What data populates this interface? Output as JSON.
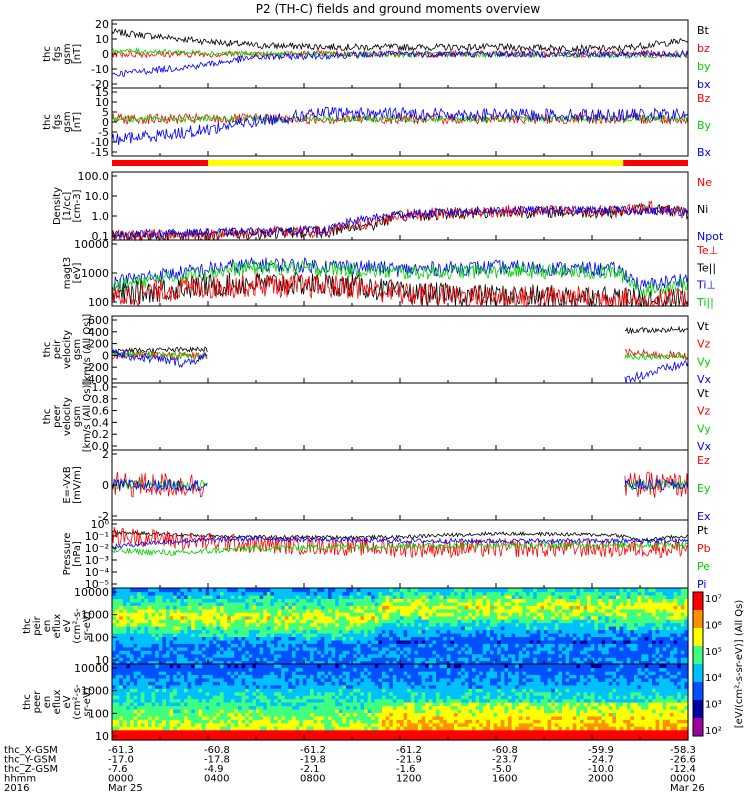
{
  "title": "P2 (TH-C) fields and ground moments overview",
  "colors": {
    "black": "#000000",
    "red": "#ff0000",
    "green": "#00d000",
    "blue": "#0000ff",
    "yellow": "#ffff00"
  },
  "panels": [
    {
      "id": "fgs",
      "ylabel": [
        "thc",
        "fgs",
        "gsm",
        "[nT]"
      ],
      "ticks": [
        "20",
        "10",
        "0",
        "-10",
        "-20"
      ],
      "legend": [
        {
          "text": "Bt",
          "color": "black"
        },
        {
          "text": "bz",
          "color": "red"
        },
        {
          "text": "by",
          "color": "green"
        },
        {
          "text": "bx",
          "color": "blue"
        }
      ]
    },
    {
      "id": "fgs_dsl",
      "ylabel": [
        "thc",
        "fgs",
        "gsm",
        "[nT]"
      ],
      "ticks": [
        "15",
        "10",
        "5",
        "0",
        "-5",
        "-10",
        "-15"
      ],
      "legend": [
        {
          "text": "Bz",
          "color": "red"
        },
        {
          "text": "By",
          "color": "green"
        },
        {
          "text": "Bx",
          "color": "blue"
        }
      ]
    },
    {
      "id": "density",
      "ylabel": [
        "Density",
        "[1/cc]",
        "[cm-3]"
      ],
      "ticks": [
        "100.0",
        "10.0",
        "1.0",
        "0.1"
      ],
      "legend": [
        {
          "text": "Ne",
          "color": "red"
        },
        {
          "text": "Ni",
          "color": "black"
        },
        {
          "text": "Npot",
          "color": "blue"
        }
      ]
    },
    {
      "id": "temp",
      "ylabel": [
        "magt3",
        "[eV]"
      ],
      "ticks": [
        "10000",
        "1000",
        "100"
      ],
      "legend": [
        {
          "text": "Te⊥",
          "color": "red"
        },
        {
          "text": "Te||",
          "color": "black"
        },
        {
          "text": "Ti⊥",
          "color": "blue"
        },
        {
          "text": "Ti||",
          "color": "green"
        }
      ]
    },
    {
      "id": "peir_vel",
      "ylabel": [
        "thc",
        "peir",
        "velocity",
        "gsm",
        "[km/s (All Qs)]"
      ],
      "ticks": [
        "600",
        "400",
        "200",
        "0",
        "-200",
        "-400"
      ],
      "legend": [
        {
          "text": "Vt",
          "color": "black"
        },
        {
          "text": "Vz",
          "color": "red"
        },
        {
          "text": "Vy",
          "color": "green"
        },
        {
          "text": "Vx",
          "color": "blue"
        }
      ]
    },
    {
      "id": "peer_vel",
      "ylabel": [
        "thc",
        "peer",
        "velocity",
        "gsm",
        "[km/s (All Qs)]"
      ],
      "ticks": [
        "1.0",
        "0.8",
        "0.6",
        "0.4",
        "0.2",
        "0.0"
      ],
      "legend": [
        {
          "text": "Vt",
          "color": "black"
        },
        {
          "text": "Vz",
          "color": "red"
        },
        {
          "text": "Vy",
          "color": "green"
        },
        {
          "text": "Vx",
          "color": "blue"
        }
      ]
    },
    {
      "id": "efield",
      "ylabel": [
        "E=-VxB",
        "[mV/m]"
      ],
      "ticks": [
        "2",
        "0",
        "-2"
      ],
      "legend": [
        {
          "text": "Ez",
          "color": "red"
        },
        {
          "text": "Ey",
          "color": "green"
        },
        {
          "text": "Ex",
          "color": "blue"
        }
      ]
    },
    {
      "id": "pressure",
      "ylabel": [
        "Pressure",
        "[nPa]"
      ],
      "ticks": [
        "10⁰",
        "10⁻¹",
        "10⁻²",
        "10⁻³",
        "10⁻⁴",
        "10⁻⁵"
      ],
      "legend": [
        {
          "text": "Pt",
          "color": "black"
        },
        {
          "text": "Pb",
          "color": "red"
        },
        {
          "text": "Pe",
          "color": "green"
        },
        {
          "text": "Pi",
          "color": "blue"
        }
      ]
    },
    {
      "id": "peir_en",
      "ylabel": [
        "thc",
        "peir",
        "en",
        "eflux",
        "eV",
        "(cm²-s-",
        "sr-eV)"
      ],
      "ticks": [
        "10000",
        "1000",
        "100",
        "10"
      ],
      "legend": []
    },
    {
      "id": "peer_en",
      "ylabel": [
        "thc",
        "peer",
        "en",
        "eflux",
        "eV",
        "(cm²-s-",
        "sr-eV)"
      ],
      "ticks": [
        "10000",
        "1000",
        "100",
        "10"
      ],
      "legend": []
    }
  ],
  "colorbar": {
    "ticks": [
      "10⁷",
      "10⁶",
      "10⁵",
      "10⁴",
      "10³",
      "10²"
    ],
    "label": "[eV/(cm²-s-sr-eV)] (All Qs)"
  },
  "xaxis": {
    "row_labels": [
      "thc_X-GSM",
      "thc_Y-GSM",
      "thc_Z-GSM",
      "hhmm",
      "2016"
    ],
    "columns": [
      [
        "-61.3",
        "-17.0",
        "-7.6",
        "0000",
        "Mar 25"
      ],
      [
        "-60.8",
        "-17.8",
        "-4.9",
        "0400",
        ""
      ],
      [
        "-61.2",
        "-19.8",
        "-2.1",
        "0800",
        ""
      ],
      [
        "-61.2",
        "-21.9",
        "-1.6",
        "1200",
        ""
      ],
      [
        "-60.8",
        "-23.7",
        "-5.0",
        "1600",
        ""
      ],
      [
        "-59.9",
        "-24.7",
        "-10.0",
        "2000",
        ""
      ],
      [
        "-58.3",
        "-26.6",
        "-12.4",
        "0000",
        "Mar 26"
      ]
    ]
  },
  "chart_data": {
    "type": "line",
    "title": "P2 (TH-C) fields and ground moments overview",
    "x_range_hours": [
      0,
      24
    ],
    "x_tick_hours": [
      0,
      4,
      8,
      12,
      16,
      20,
      24
    ],
    "series": [
      {
        "panel": "fgs",
        "name": "Bt",
        "color": "black",
        "profile": [
          [
            0,
            13
          ],
          [
            3.5,
            8
          ],
          [
            6,
            5
          ],
          [
            10,
            4
          ],
          [
            16,
            4
          ],
          [
            21,
            3
          ],
          [
            24,
            8
          ]
        ],
        "noise": 2
      },
      {
        "panel": "fgs",
        "name": "bz",
        "color": "red",
        "profile": [
          [
            0,
            0
          ],
          [
            12,
            0
          ],
          [
            24,
            0
          ]
        ],
        "noise": 2
      },
      {
        "panel": "fgs",
        "name": "by",
        "color": "green",
        "profile": [
          [
            0,
            2
          ],
          [
            6,
            0
          ],
          [
            24,
            -1
          ]
        ],
        "noise": 1.5
      },
      {
        "panel": "fgs",
        "name": "bx",
        "color": "blue",
        "profile": [
          [
            0,
            -12
          ],
          [
            3.5,
            -7
          ],
          [
            6,
            -2
          ],
          [
            12,
            0
          ],
          [
            24,
            0
          ]
        ],
        "noise": 2
      },
      {
        "panel": "fgs_dsl",
        "name": "Bz",
        "color": "red",
        "profile": [
          [
            0,
            0
          ],
          [
            12,
            0
          ],
          [
            24,
            0
          ]
        ],
        "noise": 2.5
      },
      {
        "panel": "fgs_dsl",
        "name": "By",
        "color": "green",
        "profile": [
          [
            0,
            0
          ],
          [
            12,
            0
          ],
          [
            24,
            0
          ]
        ],
        "noise": 1.5
      },
      {
        "panel": "fgs_dsl",
        "name": "Bx",
        "color": "blue",
        "profile": [
          [
            0,
            -10
          ],
          [
            3.5,
            -6
          ],
          [
            6,
            -1
          ],
          [
            9,
            3
          ],
          [
            16,
            2
          ],
          [
            24,
            2
          ]
        ],
        "noise": 3
      },
      {
        "panel": "density",
        "name": "Ni",
        "color": "black",
        "profile": [
          [
            0,
            0.12
          ],
          [
            4,
            0.15
          ],
          [
            9,
            0.2
          ],
          [
            11,
            0.5
          ],
          [
            12,
            1.2
          ],
          [
            16,
            2.0
          ],
          [
            21,
            2.0
          ],
          [
            22.5,
            3.0
          ],
          [
            24,
            1.5
          ]
        ],
        "noise": 0.6,
        "log": true
      },
      {
        "panel": "density",
        "name": "Ne",
        "color": "red",
        "profile": [
          [
            0,
            0.14
          ],
          [
            4,
            0.16
          ],
          [
            9,
            0.22
          ],
          [
            11,
            0.6
          ],
          [
            12,
            1.4
          ],
          [
            16,
            2.2
          ],
          [
            21,
            2.2
          ],
          [
            22.5,
            3.5
          ],
          [
            24,
            1.7
          ]
        ],
        "noise": 0.6,
        "log": true
      },
      {
        "panel": "density",
        "name": "Npot",
        "color": "blue",
        "profile": [
          [
            0,
            0.15
          ],
          [
            9,
            0.25
          ],
          [
            12,
            1.5
          ],
          [
            16,
            2.5
          ],
          [
            21,
            2.5
          ],
          [
            24,
            2
          ]
        ],
        "noise": 0.4,
        "log": true
      },
      {
        "panel": "temp",
        "name": "Ti⊥",
        "color": "blue",
        "profile": [
          [
            0,
            350
          ],
          [
            3,
            800
          ],
          [
            6,
            1500
          ],
          [
            10,
            1300
          ],
          [
            12,
            1000
          ],
          [
            16,
            1200
          ],
          [
            21,
            1000
          ],
          [
            22,
            250
          ],
          [
            24,
            500
          ]
        ],
        "noise": 0.5,
        "log": true
      },
      {
        "panel": "temp",
        "name": "Ti||",
        "color": "green",
        "profile": [
          [
            0,
            250
          ],
          [
            3,
            600
          ],
          [
            6,
            1200
          ],
          [
            10,
            1000
          ],
          [
            12,
            800
          ],
          [
            16,
            900
          ],
          [
            21,
            800
          ],
          [
            22,
            180
          ],
          [
            24,
            350
          ]
        ],
        "noise": 0.5,
        "log": true
      },
      {
        "panel": "temp",
        "name": "Te||",
        "color": "black",
        "profile": [
          [
            0,
            120
          ],
          [
            3,
            250
          ],
          [
            6,
            350
          ],
          [
            10,
            300
          ],
          [
            12,
            160
          ],
          [
            16,
            130
          ],
          [
            21,
            120
          ],
          [
            22,
            90
          ],
          [
            24,
            100
          ]
        ],
        "noise": 0.8,
        "log": true
      },
      {
        "panel": "temp",
        "name": "Te⊥",
        "color": "red",
        "profile": [
          [
            0,
            110
          ],
          [
            3,
            230
          ],
          [
            6,
            300
          ],
          [
            10,
            260
          ],
          [
            12,
            150
          ],
          [
            16,
            120
          ],
          [
            21,
            110
          ],
          [
            22,
            85
          ],
          [
            24,
            95
          ]
        ],
        "noise": 0.8,
        "log": true
      },
      {
        "panel": "peir_vel",
        "name": "Vt",
        "color": "black",
        "profile": [
          [
            0,
            80
          ],
          [
            4,
            100
          ],
          [
            4.05,
            null
          ],
          [
            21.3,
            null
          ],
          [
            21.35,
            380
          ],
          [
            24,
            400
          ]
        ],
        "noise": 40
      },
      {
        "panel": "peir_vel",
        "name": "Vz",
        "color": "red",
        "profile": [
          [
            0,
            20
          ],
          [
            4,
            0
          ],
          [
            4.05,
            null
          ],
          [
            21.3,
            null
          ],
          [
            21.35,
            50
          ],
          [
            24,
            0
          ]
        ],
        "noise": 60
      },
      {
        "panel": "peir_vel",
        "name": "Vy",
        "color": "green",
        "profile": [
          [
            0,
            30
          ],
          [
            4,
            0
          ],
          [
            4.05,
            null
          ],
          [
            21.3,
            null
          ],
          [
            21.35,
            0
          ],
          [
            24,
            0
          ]
        ],
        "noise": 50
      },
      {
        "panel": "peir_vel",
        "name": "Vx",
        "color": "blue",
        "profile": [
          [
            0,
            40
          ],
          [
            3,
            -100
          ],
          [
            4,
            0
          ],
          [
            4.05,
            null
          ],
          [
            21.3,
            null
          ],
          [
            21.35,
            -350
          ],
          [
            24,
            -100
          ]
        ],
        "noise": 70
      },
      {
        "panel": "efield",
        "name": "Ez",
        "color": "red",
        "profile": [
          [
            0,
            0
          ],
          [
            4,
            0
          ],
          [
            4.05,
            null
          ],
          [
            21.3,
            null
          ],
          [
            21.35,
            0
          ],
          [
            24,
            0
          ]
        ],
        "noise": 1.3
      },
      {
        "panel": "efield",
        "name": "Ey",
        "color": "green",
        "profile": [
          [
            0,
            0
          ],
          [
            4,
            0
          ],
          [
            4.05,
            null
          ],
          [
            21.3,
            null
          ],
          [
            21.35,
            0
          ],
          [
            24,
            0
          ]
        ],
        "noise": 0.5
      },
      {
        "panel": "efield",
        "name": "Ex",
        "color": "blue",
        "profile": [
          [
            0,
            0
          ],
          [
            4,
            0
          ],
          [
            4.05,
            null
          ],
          [
            21.3,
            null
          ],
          [
            21.35,
            0
          ],
          [
            24,
            0
          ]
        ],
        "noise": 0.6
      },
      {
        "panel": "pressure",
        "name": "Pt",
        "color": "black",
        "profile": [
          [
            0,
            0.1
          ],
          [
            3,
            0.06
          ],
          [
            6,
            0.04
          ],
          [
            12,
            0.04
          ],
          [
            16,
            0.08
          ],
          [
            21,
            0.06
          ],
          [
            22,
            0.02
          ],
          [
            24,
            0.05
          ]
        ],
        "noise": 0.3,
        "log": true
      },
      {
        "panel": "pressure",
        "name": "Pb",
        "color": "red",
        "profile": [
          [
            0,
            0.05
          ],
          [
            3,
            0.02
          ],
          [
            6,
            0.01
          ],
          [
            12,
            0.005
          ],
          [
            24,
            0.005
          ]
        ],
        "noise": 1.5,
        "log": true
      },
      {
        "panel": "pressure",
        "name": "Pe",
        "color": "green",
        "profile": [
          [
            0,
            0.003
          ],
          [
            3,
            0.002
          ],
          [
            6,
            0.005
          ],
          [
            12,
            0.008
          ],
          [
            24,
            0.01
          ]
        ],
        "noise": 0.5,
        "log": true
      },
      {
        "panel": "pressure",
        "name": "Pi",
        "color": "blue",
        "profile": [
          [
            0,
            0.006
          ],
          [
            3,
            0.02
          ],
          [
            6,
            0.03
          ],
          [
            12,
            0.02
          ],
          [
            24,
            0.02
          ]
        ],
        "noise": 0.4,
        "log": true
      }
    ],
    "spectrograms": [
      {
        "panel": "peir_en",
        "description_bands": [
          [
            8,
            200,
            "low"
          ],
          [
            200,
            20000,
            "mid"
          ]
        ],
        "peak_energy_eV": [
          [
            0,
            1000
          ],
          [
            12,
            1000
          ],
          [
            24,
            1000
          ]
        ]
      },
      {
        "panel": "peer_en",
        "description_bands": [
          [
            8,
            20,
            "high"
          ],
          [
            20,
            20000,
            "mid"
          ]
        ],
        "peak_energy_eV": [
          [
            0,
            100
          ],
          [
            12,
            100
          ],
          [
            24,
            100
          ]
        ]
      }
    ],
    "mode_bar": [
      {
        "from": 0,
        "to": 4,
        "color": "red"
      },
      {
        "from": 4,
        "to": 21.3,
        "color": "yellow"
      },
      {
        "from": 21.3,
        "to": 24,
        "color": "red"
      }
    ]
  }
}
